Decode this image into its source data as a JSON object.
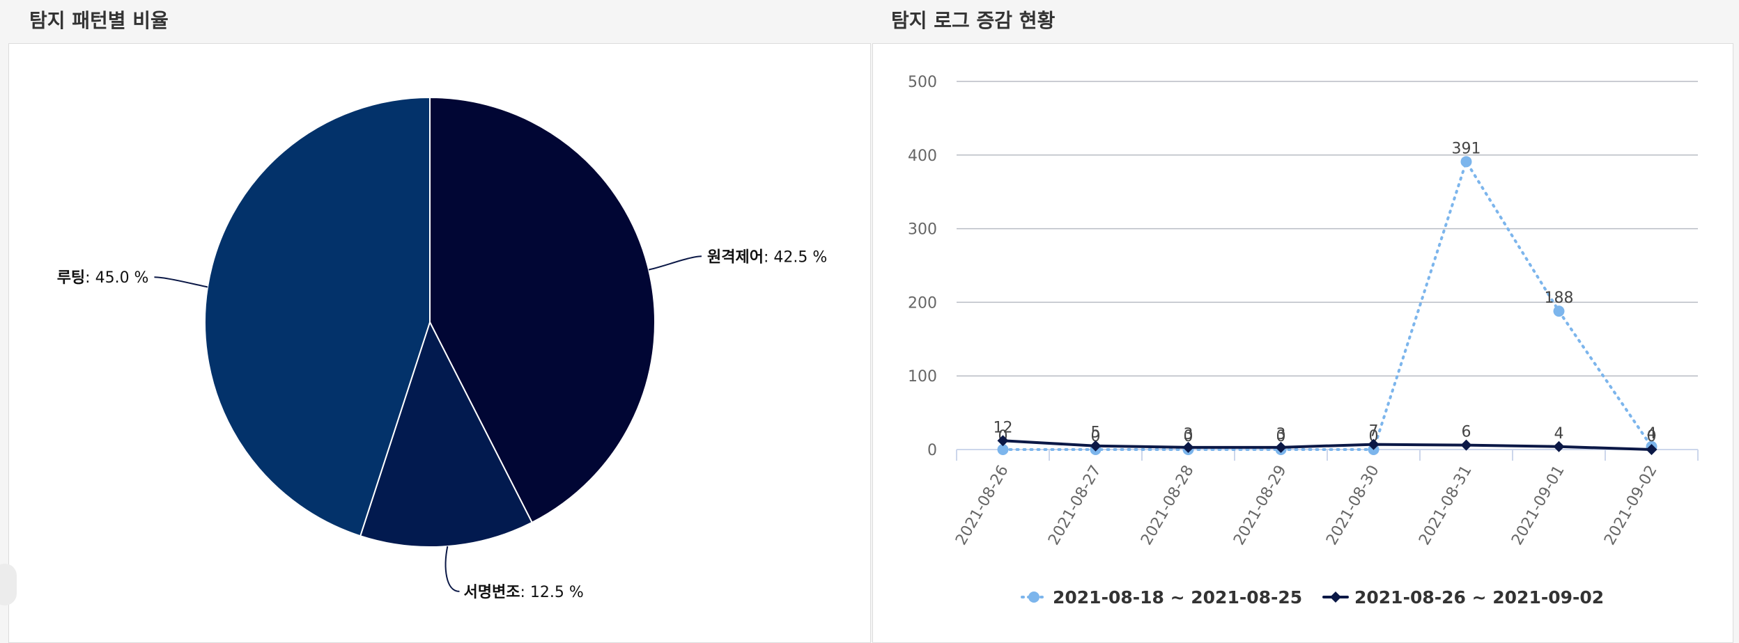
{
  "pie_panel": {
    "title": "탐지 패턴별 비율"
  },
  "line_panel": {
    "title": "탐지 로그 증감 현황"
  },
  "chart_data": [
    {
      "type": "pie",
      "title": "탐지 패턴별 비율",
      "slices": [
        {
          "name": "원격제어",
          "value": 42.5,
          "label_suffix": ": 42.5 %",
          "color": "#010634"
        },
        {
          "name": "서명변조",
          "value": 12.5,
          "label_suffix": ": 12.5 %",
          "color": "#021a4f"
        },
        {
          "name": "루팅",
          "value": 45.0,
          "label_suffix": ": 45.0 %",
          "color": "#03326a"
        }
      ]
    },
    {
      "type": "line",
      "title": "탐지 로그 증감 현황",
      "categories": [
        "2021-08-26",
        "2021-08-27",
        "2021-08-28",
        "2021-08-29",
        "2021-08-30",
        "2021-08-31",
        "2021-09-01",
        "2021-09-02"
      ],
      "ylim": [
        0,
        500
      ],
      "yticks": [
        0,
        100,
        200,
        300,
        400,
        500
      ],
      "grid": true,
      "legend": "bottom",
      "series": [
        {
          "name": "2021-08-18 ~ 2021-08-25",
          "values": [
            0,
            0,
            0,
            0,
            0,
            391,
            188,
            4
          ],
          "color": "#7cb5ec",
          "style": "dotted",
          "marker": "circle"
        },
        {
          "name": "2021-08-26 ~ 2021-09-02",
          "values": [
            12,
            5,
            3,
            3,
            7,
            6,
            4,
            0
          ],
          "color": "#0b1846",
          "style": "solid",
          "marker": "diamond"
        }
      ]
    }
  ]
}
